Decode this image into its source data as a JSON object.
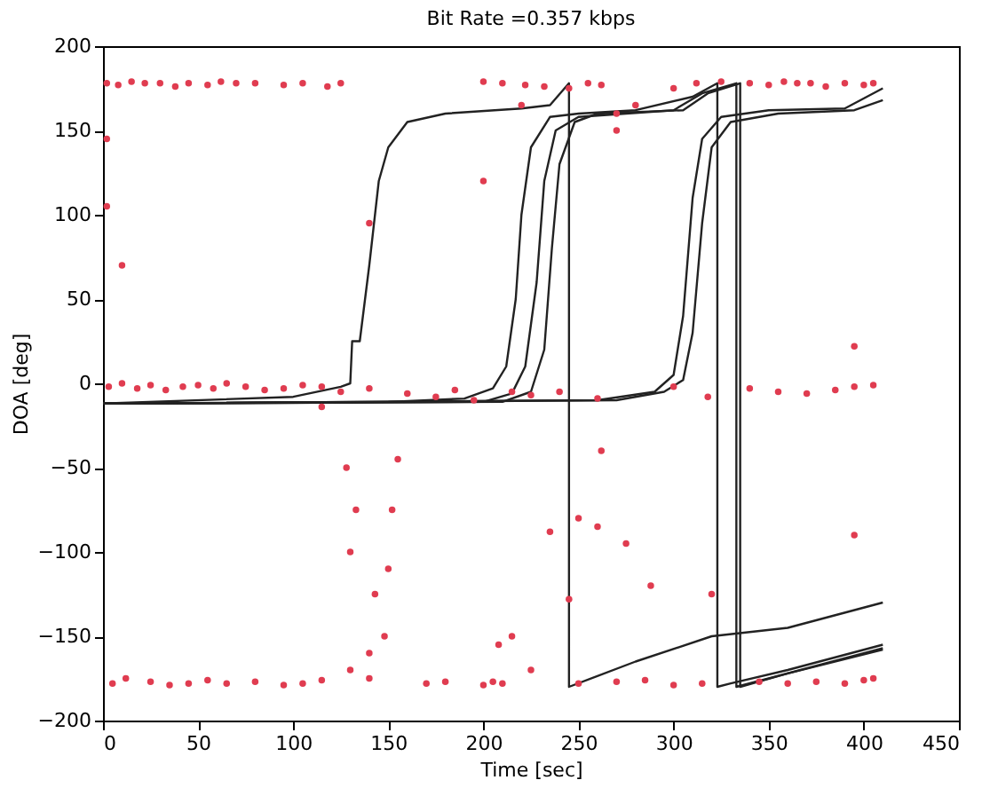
{
  "chart_data": {
    "type": "line",
    "title": "Bit Rate =0.357 kbps",
    "xlabel": "Time [sec]",
    "ylabel": "DOA [deg]",
    "xlim": [
      0,
      450
    ],
    "xticks": [
      0,
      50,
      100,
      150,
      200,
      250,
      300,
      350,
      400,
      450
    ],
    "ylim": [
      -200,
      200
    ],
    "yticks": [
      -200,
      -150,
      -100,
      -50,
      0,
      50,
      100,
      150,
      200
    ],
    "grid": false,
    "line_style": "solid",
    "marker": "none",
    "series": [
      {
        "color": "#222222",
        "x": [
          0,
          100,
          125,
          130,
          131,
          135,
          140,
          145,
          150,
          160,
          180,
          220,
          235,
          245,
          245,
          280,
          320,
          360,
          410
        ],
        "values": [
          -12,
          -8,
          -2,
          0,
          25,
          25,
          70,
          120,
          140,
          155,
          160,
          163,
          165,
          178,
          -180,
          -165,
          -150,
          -145,
          -130
        ]
      },
      {
        "color": "#222222",
        "x": [
          0,
          150,
          190,
          205,
          212,
          217,
          220,
          225,
          235,
          250,
          280,
          310,
          323,
          323,
          330,
          360,
          410
        ],
        "values": [
          -12,
          -11,
          -9,
          -3,
          10,
          50,
          100,
          140,
          158,
          160,
          162,
          170,
          178,
          -180,
          -178,
          -170,
          -155
        ]
      },
      {
        "color": "#222222",
        "x": [
          0,
          200,
          215,
          222,
          228,
          232,
          238,
          250,
          300,
          315,
          333,
          333,
          350,
          410
        ],
        "values": [
          -12,
          -11,
          -6,
          10,
          60,
          120,
          150,
          158,
          162,
          172,
          178,
          -180,
          -175,
          -157
        ]
      },
      {
        "color": "#222222",
        "x": [
          0,
          210,
          225,
          232,
          236,
          240,
          248,
          260,
          305,
          318,
          335,
          335,
          360,
          410
        ],
        "values": [
          -12,
          -11,
          -5,
          20,
          80,
          130,
          155,
          160,
          162,
          172,
          178,
          -180,
          -172,
          -158
        ]
      },
      {
        "color": "#222222",
        "x": [
          0,
          260,
          290,
          300,
          305,
          310,
          315,
          325,
          350,
          390,
          410
        ],
        "values": [
          -12,
          -10,
          -5,
          5,
          40,
          110,
          145,
          158,
          162,
          163,
          175
        ]
      },
      {
        "color": "#222222",
        "x": [
          0,
          270,
          295,
          305,
          310,
          315,
          320,
          330,
          355,
          395,
          410
        ],
        "values": [
          -12,
          -10,
          -5,
          2,
          30,
          95,
          140,
          155,
          160,
          162,
          168
        ]
      },
      {
        "type": "scatter",
        "color": "#e03c50",
        "x": [
          2,
          8,
          15,
          22,
          30,
          38,
          45,
          55,
          62,
          70,
          80,
          95,
          105,
          118,
          125,
          200,
          210,
          222,
          232,
          245,
          255,
          262,
          270,
          280,
          300,
          312,
          325,
          340,
          350,
          358,
          365,
          372,
          380,
          390,
          400,
          405,
          3,
          10,
          18,
          25,
          33,
          42,
          50,
          58,
          65,
          75,
          85,
          95,
          105,
          115,
          125,
          140,
          160,
          175,
          185,
          195,
          215,
          225,
          240,
          260,
          300,
          318,
          340,
          355,
          370,
          385,
          395,
          405,
          5,
          12,
          25,
          35,
          45,
          55,
          65,
          80,
          95,
          105,
          115,
          130,
          140,
          170,
          180,
          200,
          205,
          210,
          225,
          250,
          270,
          285,
          300,
          315,
          345,
          360,
          375,
          390,
          400,
          405,
          2,
          2,
          10,
          128,
          130,
          133,
          140,
          143,
          150,
          152,
          155,
          148,
          235,
          250,
          260,
          275,
          288,
          320,
          395,
          245,
          215,
          140,
          115,
          200,
          270,
          395,
          220,
          208,
          262
        ],
        "values": [
          178,
          177,
          179,
          178,
          178,
          176,
          178,
          177,
          179,
          178,
          178,
          177,
          178,
          176,
          178,
          179,
          178,
          177,
          176,
          175,
          178,
          177,
          160,
          165,
          175,
          178,
          179,
          178,
          177,
          179,
          178,
          178,
          176,
          178,
          177,
          178,
          -2,
          0,
          -3,
          -1,
          -4,
          -2,
          -1,
          -3,
          0,
          -2,
          -4,
          -3,
          -1,
          -2,
          -5,
          -3,
          -6,
          -8,
          -4,
          -10,
          -5,
          -7,
          -5,
          -9,
          -2,
          -8,
          -3,
          -5,
          -6,
          -4,
          -2,
          -1,
          -178,
          -175,
          -177,
          -179,
          -178,
          -176,
          -178,
          -177,
          -179,
          -178,
          -176,
          -170,
          -175,
          -178,
          -177,
          -179,
          -177,
          -178,
          -170,
          -178,
          -177,
          -176,
          -179,
          -178,
          -177,
          -178,
          -177,
          -178,
          -176,
          -175,
          145,
          105,
          70,
          -50,
          -100,
          -75,
          -160,
          -125,
          -110,
          -75,
          -45,
          -150,
          -88,
          -80,
          -85,
          -95,
          -120,
          -125,
          -90,
          -128,
          -150,
          95,
          -14,
          120,
          150,
          22,
          165,
          -155,
          -40
        ]
      }
    ]
  }
}
